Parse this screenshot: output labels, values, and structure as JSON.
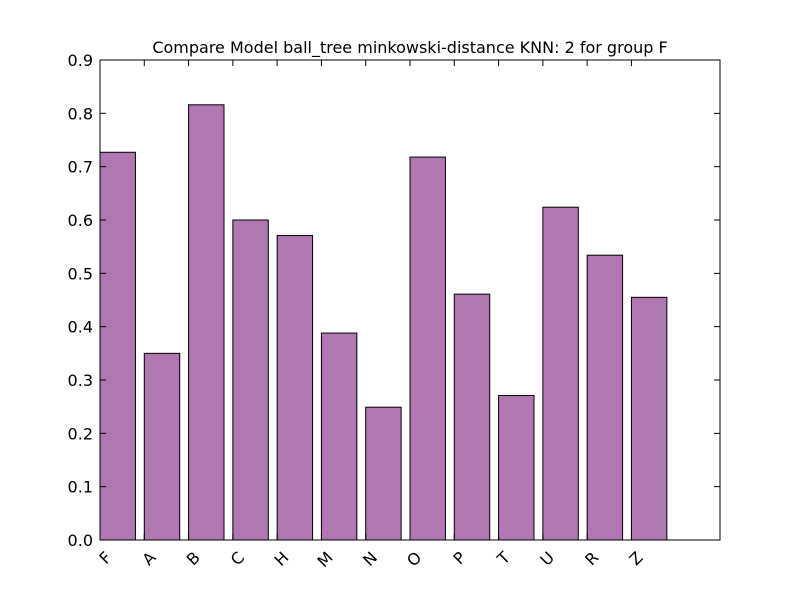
{
  "chart_data": {
    "type": "bar",
    "title": "Compare Model ball_tree minkowski-distance KNN: 2 for group F",
    "xlabel": "",
    "ylabel": "",
    "categories": [
      "F",
      "A",
      "B",
      "C",
      "H",
      "M",
      "N",
      "O",
      "P",
      "T",
      "U",
      "R",
      "Z"
    ],
    "values": [
      0.727,
      0.35,
      0.816,
      0.6,
      0.571,
      0.388,
      0.249,
      0.718,
      0.461,
      0.271,
      0.624,
      0.534,
      0.455
    ],
    "ylim": [
      0.0,
      0.9
    ],
    "yticks": [
      "0.0",
      "0.1",
      "0.2",
      "0.3",
      "0.4",
      "0.5",
      "0.6",
      "0.7",
      "0.8",
      "0.9"
    ],
    "bar_color": "#b177b3",
    "grid": false,
    "legend": "none"
  }
}
